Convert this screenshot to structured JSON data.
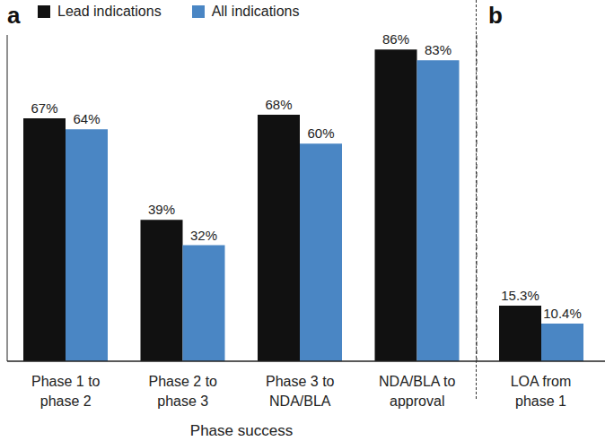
{
  "chart_data": [
    {
      "type": "bar",
      "title": "a",
      "xlabel": "Phase success",
      "categories": [
        "Phase 1 to phase 2",
        "Phase 2 to phase 3",
        "Phase 3 to NDA/BLA",
        "NDA/BLA to approval"
      ],
      "series": [
        {
          "name": "Lead indications",
          "color": "#111111",
          "values": [
            67,
            39,
            68,
            86
          ],
          "value_labels": [
            "67%",
            "39%",
            "68%",
            "86%"
          ]
        },
        {
          "name": "All indications",
          "color": "#4a86c4",
          "values": [
            64,
            32,
            60,
            83
          ],
          "value_labels": [
            "64%",
            "32%",
            "60%",
            "83%"
          ]
        }
      ],
      "ylim": [
        0,
        90
      ],
      "yticks": [],
      "tick_labels": "x",
      "data_labels": true,
      "legend": "top left"
    },
    {
      "type": "bar",
      "title": "b",
      "categories": [
        "LOA from phase 1"
      ],
      "series": [
        {
          "name": "Lead indications",
          "color": "#111111",
          "values": [
            15.3
          ],
          "value_labels": [
            "15.3%"
          ]
        },
        {
          "name": "All indications",
          "color": "#4a86c4",
          "values": [
            10.4
          ],
          "value_labels": [
            "10.4%"
          ]
        }
      ],
      "ylim": [
        0,
        90
      ],
      "yticks": [],
      "tick_labels": "x",
      "data_labels": true
    }
  ]
}
